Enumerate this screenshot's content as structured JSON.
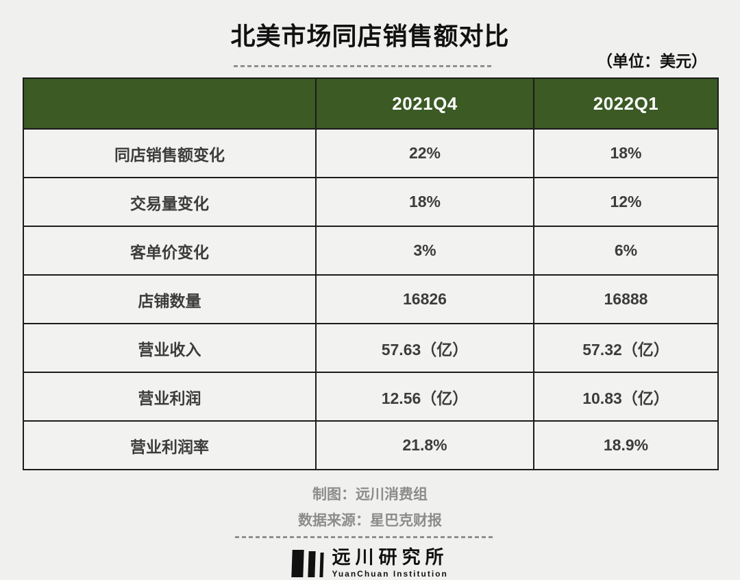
{
  "header": {
    "title": "北美市场同店销售额对比",
    "unit_note": "（单位：美元）"
  },
  "chart_data": {
    "type": "table",
    "title": "北美市场同店销售额对比",
    "unit": "（单位：美元）",
    "columns": [
      "",
      "2021Q4",
      "2022Q1"
    ],
    "rows": [
      [
        "同店销售额变化",
        "22%",
        "18%"
      ],
      [
        "交易量变化",
        "18%",
        "12%"
      ],
      [
        "客单价变化",
        "3%",
        "6%"
      ],
      [
        "店铺数量",
        "16826",
        "16888"
      ],
      [
        "营业收入",
        "57.63（亿）",
        "57.32（亿）"
      ],
      [
        "营业利润",
        "12.56（亿）",
        "10.83（亿）"
      ],
      [
        "营业利润率",
        "21.8%",
        "18.9%"
      ]
    ]
  },
  "footer": {
    "credit": "制图：远川消费组",
    "source": "数据来源：星巴克财报",
    "logo_name": "远川研究所",
    "logo_subname": "YuanChuan Institution"
  },
  "colors": {
    "page_bg": "#f0f0ee",
    "header_bg": "#3b5a24",
    "header_text": "#ffffff",
    "cell_bg": "#f2f2f0",
    "border": "#1b1b1b",
    "body_text": "#3c3c3c",
    "muted_text": "#8c8c8c",
    "title_text": "#111111"
  }
}
